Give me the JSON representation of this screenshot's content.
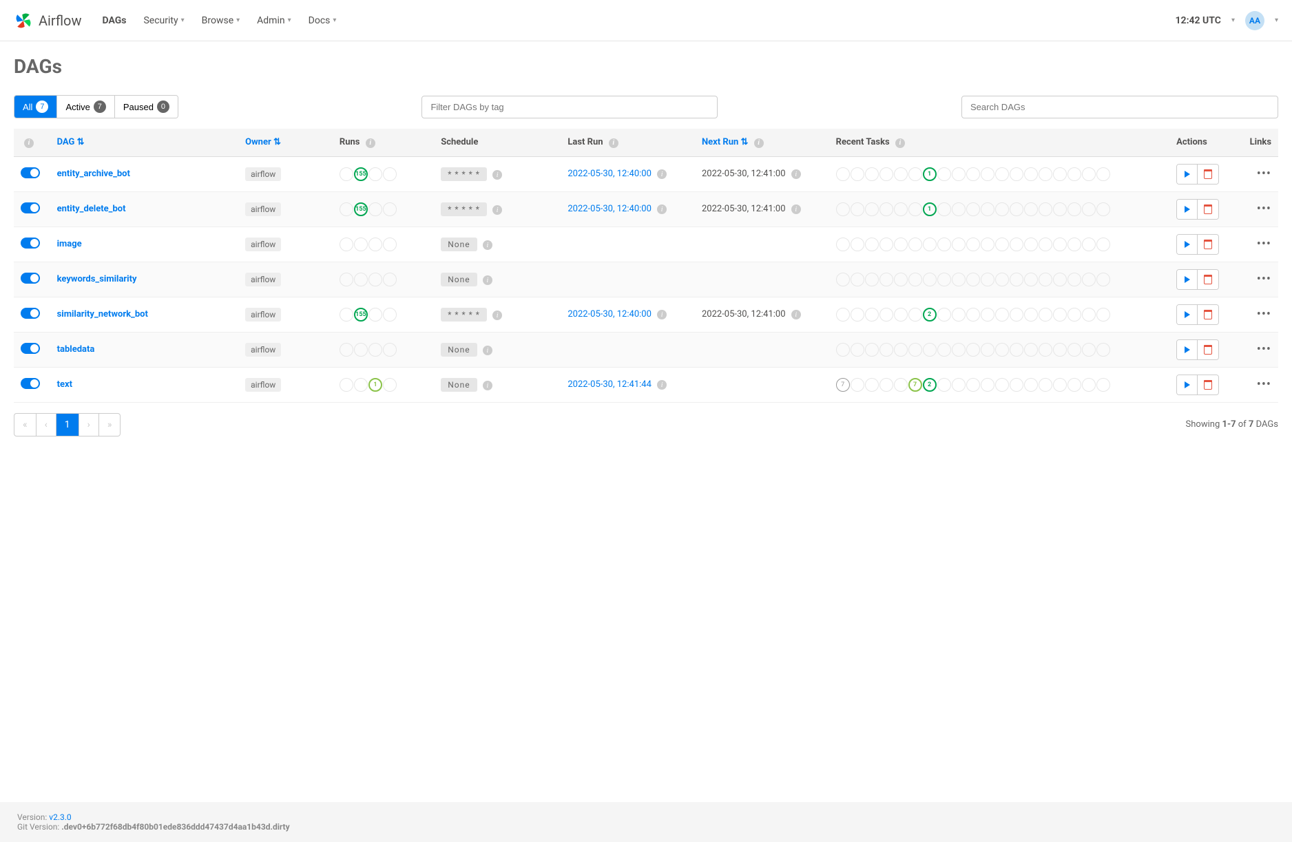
{
  "nav": {
    "brand": "Airflow",
    "items": [
      "DAGs",
      "Security",
      "Browse",
      "Admin",
      "Docs"
    ],
    "clock": "12:42 UTC",
    "avatar": "AA"
  },
  "page_title": "DAGs",
  "filters": {
    "all": {
      "label": "All",
      "count": "7"
    },
    "active": {
      "label": "Active",
      "count": "7"
    },
    "paused": {
      "label": "Paused",
      "count": "0"
    },
    "tag_placeholder": "Filter DAGs by tag",
    "search_placeholder": "Search DAGs"
  },
  "columns": {
    "dag": "DAG",
    "owner": "Owner",
    "runs": "Runs",
    "schedule": "Schedule",
    "last_run": "Last Run",
    "next_run": "Next Run",
    "recent": "Recent Tasks",
    "actions": "Actions",
    "links": "Links"
  },
  "dags": [
    {
      "name": "entity_archive_bot",
      "owner": "airflow",
      "runs": [
        {
          "v": "",
          "s": ""
        },
        {
          "v": "155",
          "s": "success"
        },
        {
          "v": "",
          "s": ""
        },
        {
          "v": "",
          "s": ""
        }
      ],
      "schedule": "* * * * *",
      "sched_none": false,
      "last_run": "2022-05-30, 12:40:00",
      "next_run": "2022-05-30, 12:41:00",
      "recent": [
        {
          "v": "",
          "s": ""
        },
        {
          "v": "",
          "s": ""
        },
        {
          "v": "",
          "s": ""
        },
        {
          "v": "",
          "s": ""
        },
        {
          "v": "",
          "s": ""
        },
        {
          "v": "",
          "s": ""
        },
        {
          "v": "1",
          "s": "success"
        },
        {
          "v": "",
          "s": ""
        },
        {
          "v": "",
          "s": ""
        },
        {
          "v": "",
          "s": ""
        },
        {
          "v": "",
          "s": ""
        },
        {
          "v": "",
          "s": ""
        },
        {
          "v": "",
          "s": ""
        },
        {
          "v": "",
          "s": ""
        },
        {
          "v": "",
          "s": ""
        },
        {
          "v": "",
          "s": ""
        },
        {
          "v": "",
          "s": ""
        },
        {
          "v": "",
          "s": ""
        },
        {
          "v": "",
          "s": ""
        }
      ]
    },
    {
      "name": "entity_delete_bot",
      "owner": "airflow",
      "runs": [
        {
          "v": "",
          "s": ""
        },
        {
          "v": "155",
          "s": "success"
        },
        {
          "v": "",
          "s": ""
        },
        {
          "v": "",
          "s": ""
        }
      ],
      "schedule": "* * * * *",
      "sched_none": false,
      "last_run": "2022-05-30, 12:40:00",
      "next_run": "2022-05-30, 12:41:00",
      "recent": [
        {
          "v": "",
          "s": ""
        },
        {
          "v": "",
          "s": ""
        },
        {
          "v": "",
          "s": ""
        },
        {
          "v": "",
          "s": ""
        },
        {
          "v": "",
          "s": ""
        },
        {
          "v": "",
          "s": ""
        },
        {
          "v": "1",
          "s": "success"
        },
        {
          "v": "",
          "s": ""
        },
        {
          "v": "",
          "s": ""
        },
        {
          "v": "",
          "s": ""
        },
        {
          "v": "",
          "s": ""
        },
        {
          "v": "",
          "s": ""
        },
        {
          "v": "",
          "s": ""
        },
        {
          "v": "",
          "s": ""
        },
        {
          "v": "",
          "s": ""
        },
        {
          "v": "",
          "s": ""
        },
        {
          "v": "",
          "s": ""
        },
        {
          "v": "",
          "s": ""
        },
        {
          "v": "",
          "s": ""
        }
      ]
    },
    {
      "name": "image",
      "owner": "airflow",
      "runs": [
        {
          "v": "",
          "s": ""
        },
        {
          "v": "",
          "s": ""
        },
        {
          "v": "",
          "s": ""
        },
        {
          "v": "",
          "s": ""
        }
      ],
      "schedule": "None",
      "sched_none": true,
      "last_run": "",
      "next_run": "",
      "recent": [
        {
          "v": "",
          "s": ""
        },
        {
          "v": "",
          "s": ""
        },
        {
          "v": "",
          "s": ""
        },
        {
          "v": "",
          "s": ""
        },
        {
          "v": "",
          "s": ""
        },
        {
          "v": "",
          "s": ""
        },
        {
          "v": "",
          "s": ""
        },
        {
          "v": "",
          "s": ""
        },
        {
          "v": "",
          "s": ""
        },
        {
          "v": "",
          "s": ""
        },
        {
          "v": "",
          "s": ""
        },
        {
          "v": "",
          "s": ""
        },
        {
          "v": "",
          "s": ""
        },
        {
          "v": "",
          "s": ""
        },
        {
          "v": "",
          "s": ""
        },
        {
          "v": "",
          "s": ""
        },
        {
          "v": "",
          "s": ""
        },
        {
          "v": "",
          "s": ""
        },
        {
          "v": "",
          "s": ""
        }
      ]
    },
    {
      "name": "keywords_similarity",
      "owner": "airflow",
      "runs": [
        {
          "v": "",
          "s": ""
        },
        {
          "v": "",
          "s": ""
        },
        {
          "v": "",
          "s": ""
        },
        {
          "v": "",
          "s": ""
        }
      ],
      "schedule": "None",
      "sched_none": true,
      "last_run": "",
      "next_run": "",
      "recent": [
        {
          "v": "",
          "s": ""
        },
        {
          "v": "",
          "s": ""
        },
        {
          "v": "",
          "s": ""
        },
        {
          "v": "",
          "s": ""
        },
        {
          "v": "",
          "s": ""
        },
        {
          "v": "",
          "s": ""
        },
        {
          "v": "",
          "s": ""
        },
        {
          "v": "",
          "s": ""
        },
        {
          "v": "",
          "s": ""
        },
        {
          "v": "",
          "s": ""
        },
        {
          "v": "",
          "s": ""
        },
        {
          "v": "",
          "s": ""
        },
        {
          "v": "",
          "s": ""
        },
        {
          "v": "",
          "s": ""
        },
        {
          "v": "",
          "s": ""
        },
        {
          "v": "",
          "s": ""
        },
        {
          "v": "",
          "s": ""
        },
        {
          "v": "",
          "s": ""
        },
        {
          "v": "",
          "s": ""
        }
      ]
    },
    {
      "name": "similarity_network_bot",
      "owner": "airflow",
      "runs": [
        {
          "v": "",
          "s": ""
        },
        {
          "v": "155",
          "s": "success"
        },
        {
          "v": "",
          "s": ""
        },
        {
          "v": "",
          "s": ""
        }
      ],
      "schedule": "* * * * *",
      "sched_none": false,
      "last_run": "2022-05-30, 12:40:00",
      "next_run": "2022-05-30, 12:41:00",
      "recent": [
        {
          "v": "",
          "s": ""
        },
        {
          "v": "",
          "s": ""
        },
        {
          "v": "",
          "s": ""
        },
        {
          "v": "",
          "s": ""
        },
        {
          "v": "",
          "s": ""
        },
        {
          "v": "",
          "s": ""
        },
        {
          "v": "2",
          "s": "success"
        },
        {
          "v": "",
          "s": ""
        },
        {
          "v": "",
          "s": ""
        },
        {
          "v": "",
          "s": ""
        },
        {
          "v": "",
          "s": ""
        },
        {
          "v": "",
          "s": ""
        },
        {
          "v": "",
          "s": ""
        },
        {
          "v": "",
          "s": ""
        },
        {
          "v": "",
          "s": ""
        },
        {
          "v": "",
          "s": ""
        },
        {
          "v": "",
          "s": ""
        },
        {
          "v": "",
          "s": ""
        },
        {
          "v": "",
          "s": ""
        }
      ]
    },
    {
      "name": "tabledata",
      "owner": "airflow",
      "runs": [
        {
          "v": "",
          "s": ""
        },
        {
          "v": "",
          "s": ""
        },
        {
          "v": "",
          "s": ""
        },
        {
          "v": "",
          "s": ""
        }
      ],
      "schedule": "None",
      "sched_none": true,
      "last_run": "",
      "next_run": "",
      "recent": [
        {
          "v": "",
          "s": ""
        },
        {
          "v": "",
          "s": ""
        },
        {
          "v": "",
          "s": ""
        },
        {
          "v": "",
          "s": ""
        },
        {
          "v": "",
          "s": ""
        },
        {
          "v": "",
          "s": ""
        },
        {
          "v": "",
          "s": ""
        },
        {
          "v": "",
          "s": ""
        },
        {
          "v": "",
          "s": ""
        },
        {
          "v": "",
          "s": ""
        },
        {
          "v": "",
          "s": ""
        },
        {
          "v": "",
          "s": ""
        },
        {
          "v": "",
          "s": ""
        },
        {
          "v": "",
          "s": ""
        },
        {
          "v": "",
          "s": ""
        },
        {
          "v": "",
          "s": ""
        },
        {
          "v": "",
          "s": ""
        },
        {
          "v": "",
          "s": ""
        },
        {
          "v": "",
          "s": ""
        }
      ]
    },
    {
      "name": "text",
      "owner": "airflow",
      "runs": [
        {
          "v": "",
          "s": ""
        },
        {
          "v": "",
          "s": ""
        },
        {
          "v": "1",
          "s": "running-light"
        },
        {
          "v": "",
          "s": ""
        }
      ],
      "schedule": "None",
      "sched_none": true,
      "last_run": "2022-05-30, 12:41:44",
      "next_run": "",
      "recent": [
        {
          "v": "7",
          "s": "queued"
        },
        {
          "v": "",
          "s": ""
        },
        {
          "v": "",
          "s": ""
        },
        {
          "v": "",
          "s": ""
        },
        {
          "v": "",
          "s": ""
        },
        {
          "v": "7",
          "s": "running-light"
        },
        {
          "v": "2",
          "s": "success"
        },
        {
          "v": "",
          "s": ""
        },
        {
          "v": "",
          "s": ""
        },
        {
          "v": "",
          "s": ""
        },
        {
          "v": "",
          "s": ""
        },
        {
          "v": "",
          "s": ""
        },
        {
          "v": "",
          "s": ""
        },
        {
          "v": "",
          "s": ""
        },
        {
          "v": "",
          "s": ""
        },
        {
          "v": "",
          "s": ""
        },
        {
          "v": "",
          "s": ""
        },
        {
          "v": "",
          "s": ""
        },
        {
          "v": "",
          "s": ""
        }
      ]
    }
  ],
  "pagination": {
    "current": "1",
    "showing_prefix": "Showing ",
    "range": "1-7",
    "of": " of ",
    "total": "7",
    "suffix": " DAGs"
  },
  "footer": {
    "version_label": "Version: ",
    "version": "v2.3.0",
    "git_label": "Git Version: ",
    "git": ".dev0+6b772f68db4f80b01ede836ddd47437d4aa1b43d.dirty"
  }
}
